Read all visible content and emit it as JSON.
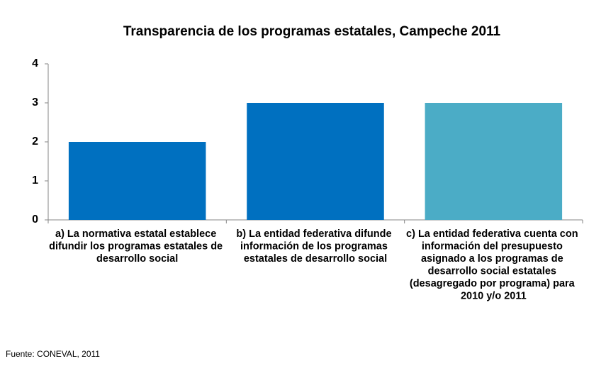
{
  "chart_data": {
    "type": "bar",
    "title": "Transparencia de los programas estatales, Campeche 2011",
    "categories": [
      "a) La normativa estatal establece difundir los programas estatales de desarrollo social",
      "b) La entidad federativa difunde información de los programas estatales de desarrollo social",
      "c) La entidad federativa cuenta con información del presupuesto asignado a los programas de desarrollo social estatales (desagregado por programa) para 2010 y/o 2011"
    ],
    "values": [
      2,
      3,
      3
    ],
    "colors": [
      "#0070c0",
      "#0070c0",
      "#4bacc6"
    ],
    "ylim": [
      0,
      4
    ],
    "yticks": [
      0,
      1,
      2,
      3,
      4
    ],
    "grid": false,
    "source": "Fuente: CONEVAL, 2011"
  }
}
